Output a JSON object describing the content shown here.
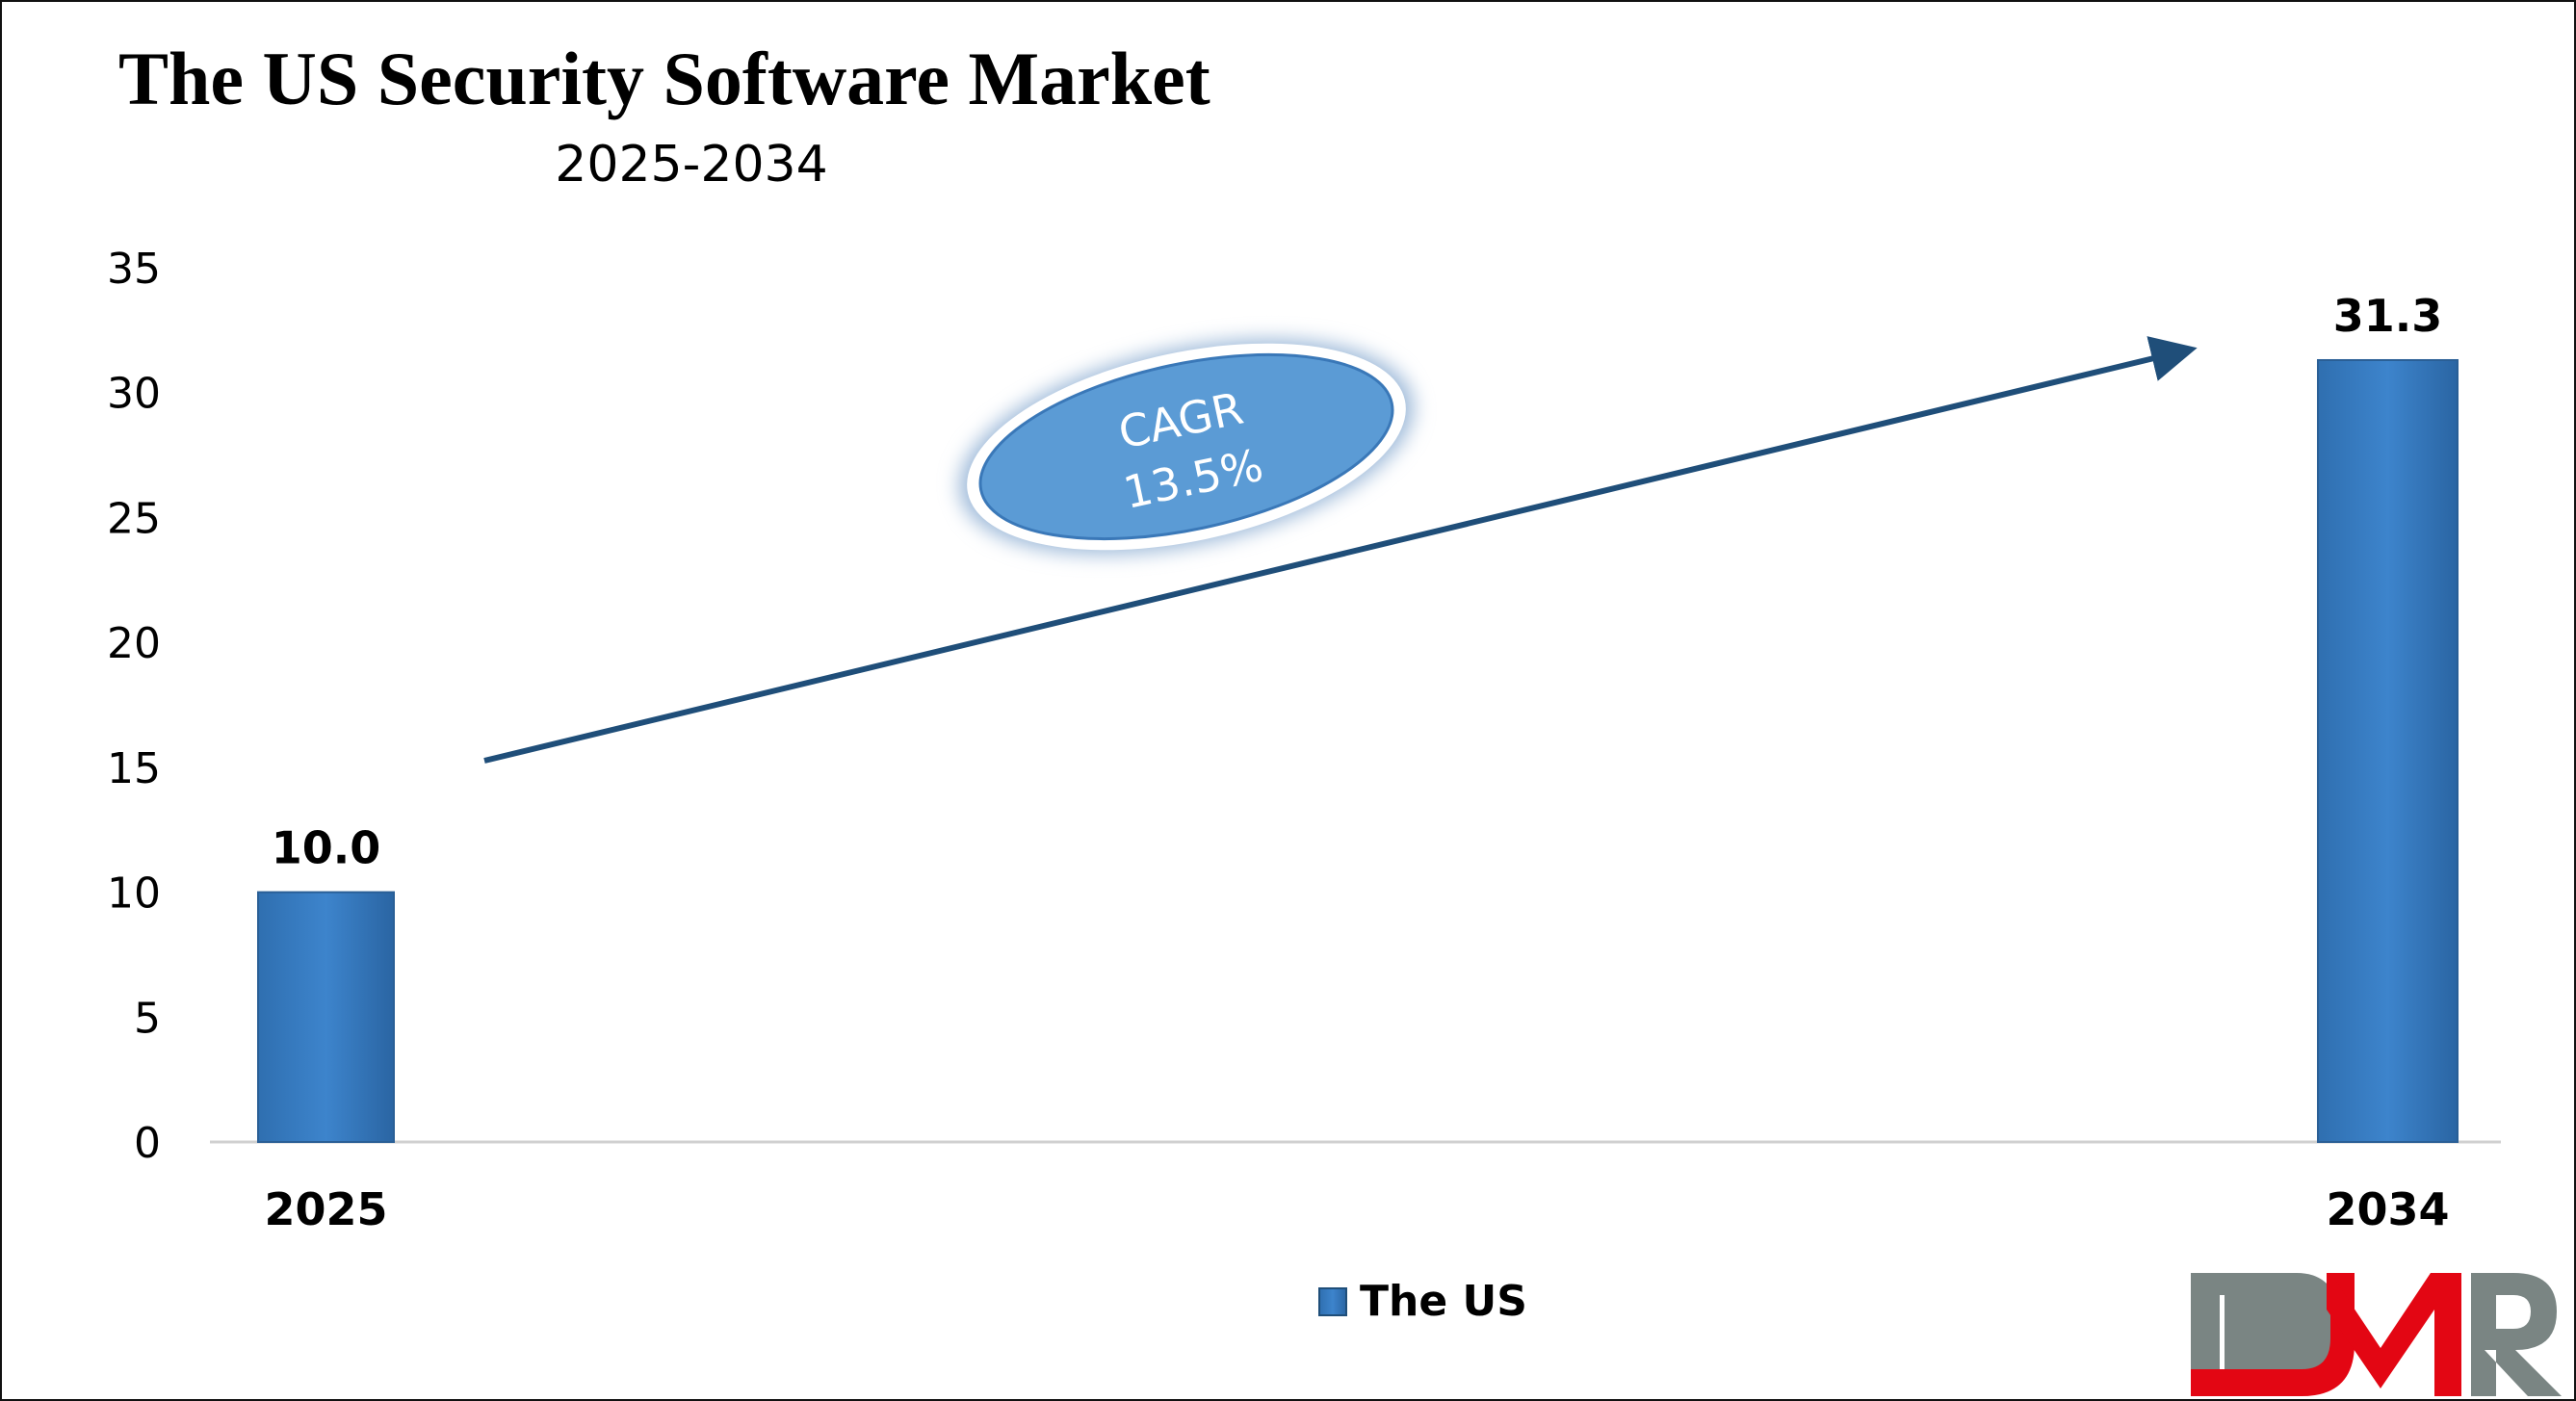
{
  "chart_data": {
    "type": "bar",
    "title": "The US Security Software Market",
    "subtitle": "2025-2034",
    "categories": [
      "2025",
      "2034"
    ],
    "series": [
      {
        "name": "The US",
        "values": [
          10.0,
          31.3
        ],
        "labels": [
          "10.0",
          "31.3"
        ]
      }
    ],
    "ylim": [
      0,
      35
    ],
    "yticks": [
      "0",
      "5",
      "10",
      "15",
      "20",
      "25",
      "30",
      "35"
    ],
    "grid": false,
    "legend_placement": "bottom",
    "annotation": {
      "line1": "CAGR",
      "line2": "13.5%"
    },
    "colors": {
      "bar": "#3a7ec4",
      "arrow": "#1f4e79",
      "ellipse": "#5b9bd5"
    }
  },
  "logo": {
    "text": "DMR",
    "colors": {
      "gray": "#7a8583",
      "red": "#e30613"
    }
  }
}
